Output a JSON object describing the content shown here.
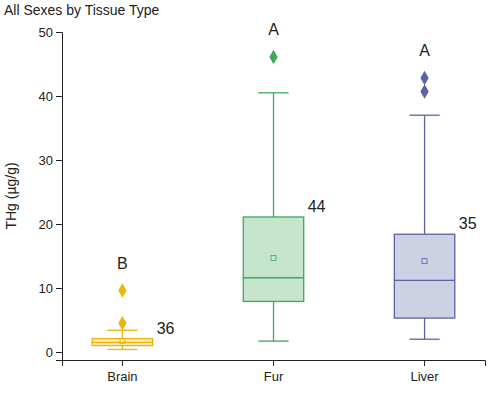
{
  "chart_data": {
    "type": "box",
    "title": "All Sexes by Tissue Type",
    "y_label": "THg (µg/g)",
    "categories": [
      "Brain",
      "Fur",
      "Liver"
    ],
    "colors": [
      "#e8b60c",
      "#3ea95a",
      "#5d62a3"
    ],
    "ylim": [
      -1.25,
      50
    ],
    "yticks": [
      0,
      10,
      20,
      30,
      40,
      50
    ],
    "boxes": [
      {
        "whisker_low": 0.4,
        "q1": 1.0,
        "median": 1.5,
        "q3": 2.1,
        "whisker_high": 3.4,
        "mean": 1.7,
        "outliers": [
          4.5,
          9.6
        ],
        "n": 36,
        "group": "B"
      },
      {
        "whisker_low": 1.7,
        "q1": 7.9,
        "median": 11.6,
        "q3": 21.1,
        "whisker_high": 40.5,
        "mean": 14.7,
        "outliers": [
          46.1
        ],
        "n": 44,
        "group": "A"
      },
      {
        "whisker_low": 2.0,
        "q1": 5.3,
        "median": 11.2,
        "q3": 18.4,
        "whisker_high": 37.0,
        "mean": 14.2,
        "outliers": [
          40.7,
          42.8
        ],
        "n": 35,
        "group": "A"
      }
    ]
  }
}
